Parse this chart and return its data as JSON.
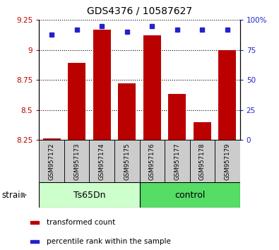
{
  "title": "GDS4376 / 10587627",
  "samples": [
    "GSM957172",
    "GSM957173",
    "GSM957174",
    "GSM957175",
    "GSM957176",
    "GSM957177",
    "GSM957178",
    "GSM957179"
  ],
  "red_values": [
    8.265,
    8.895,
    9.17,
    8.72,
    9.12,
    8.635,
    8.4,
    9.0
  ],
  "blue_values": [
    88,
    92,
    95,
    90,
    95,
    92,
    92,
    92
  ],
  "ylim_left": [
    8.25,
    9.25
  ],
  "ylim_right": [
    0,
    100
  ],
  "yticks_left": [
    8.25,
    8.5,
    8.75,
    9.0,
    9.25
  ],
  "ytick_labels_left": [
    "8.25",
    "8.5",
    "8.75",
    "9",
    "9.25"
  ],
  "yticks_right": [
    0,
    25,
    50,
    75,
    100
  ],
  "ytick_labels_right": [
    "0",
    "25",
    "50",
    "75",
    "100%"
  ],
  "groups": [
    {
      "label": "Ts65Dn",
      "start": 0,
      "end": 3,
      "color": "#ccffcc"
    },
    {
      "label": "control",
      "start": 4,
      "end": 7,
      "color": "#55dd66"
    }
  ],
  "group_row_label": "strain",
  "red_color": "#bb0000",
  "blue_color": "#2222cc",
  "bar_bottom": 8.25,
  "sample_box_color": "#cccccc",
  "legend_items": [
    {
      "label": "transformed count",
      "color": "#bb0000"
    },
    {
      "label": "percentile rank within the sample",
      "color": "#2222cc"
    }
  ]
}
